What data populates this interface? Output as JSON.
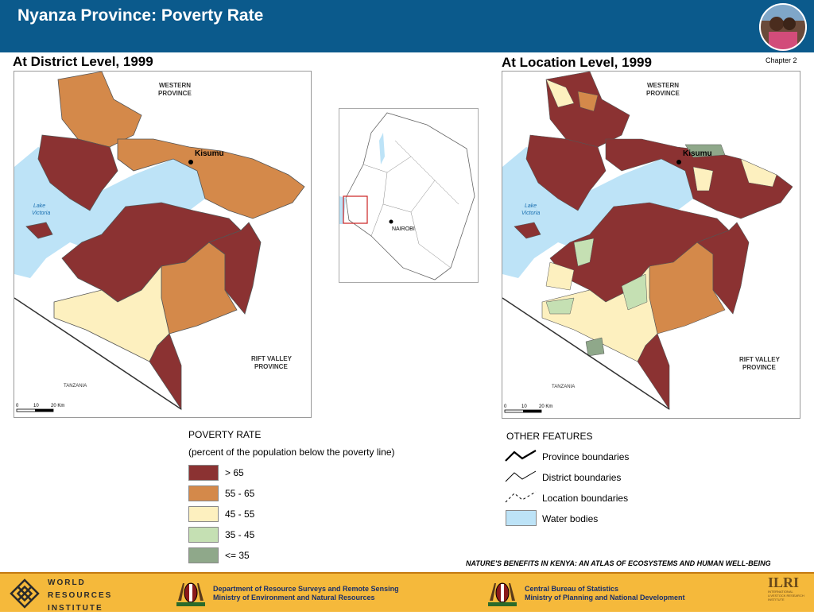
{
  "header": {
    "title": "Nyanza Province: Poverty Rate"
  },
  "chapter": "Chapter 2",
  "left_map": {
    "title": "At District Level, 1999",
    "labels": {
      "western": "WESTERN",
      "western2": "PROVINCE",
      "kisumu": "Kisumu",
      "lake": "Lake",
      "lake2": "Victoria",
      "rift": "RIFT VALLEY",
      "rift2": "PROVINCE",
      "tanzania": "TANZANIA"
    },
    "scale": {
      "s0": "0",
      "s1": "10",
      "s2": "20 Km"
    }
  },
  "right_map": {
    "title": "At Location Level, 1999",
    "labels": {
      "western": "WESTERN",
      "western2": "PROVINCE",
      "kisumu": "Kisumu",
      "lake": "Lake",
      "lake2": "Victoria",
      "rift": "RIFT VALLEY",
      "rift2": "PROVINCE",
      "tanzania": "TANZANIA"
    },
    "scale": {
      "s0": "0",
      "s1": "10",
      "s2": "20 Km"
    }
  },
  "inset": {
    "nairobi": "NAIROBI"
  },
  "poverty_legend": {
    "title": "POVERTY RATE",
    "subtitle": "(percent of the population below the poverty line)",
    "items": [
      {
        "label": "> 65",
        "color": "#8b3232"
      },
      {
        "label": "55 - 65",
        "color": "#d4894a"
      },
      {
        "label": "45 - 55",
        "color": "#fdf0bf"
      },
      {
        "label": "35 - 45",
        "color": "#c5e0b3"
      },
      {
        "label": "<= 35",
        "color": "#8fa88a"
      }
    ]
  },
  "features_legend": {
    "title": "OTHER FEATURES",
    "items": [
      {
        "label": "Province boundaries"
      },
      {
        "label": "District boundaries"
      },
      {
        "label": "Location boundaries"
      },
      {
        "label": "Water bodies"
      }
    ]
  },
  "colors": {
    "water": "#bde3f7",
    "header": "#0b5a8c",
    "footer": "#f5b93b"
  },
  "footer": {
    "note": "NATURE'S BENEFITS IN KENYA: AN ATLAS OF ECOSYSTEMS AND HUMAN WELL-BEING",
    "wri": [
      "WORLD",
      "RESOURCES",
      "INSTITUTE"
    ],
    "dept1": "Department of Resource Surveys and Remote Sensing",
    "dept2": "Ministry of Environment and Natural Resources",
    "cbs1": "Central Bureau of Statistics",
    "cbs2": "Ministry of Planning and National Development",
    "ilri": "ILRI",
    "ilri_sub1": "INTERNATIONAL",
    "ilri_sub2": "LIVESTOCK RESEARCH",
    "ilri_sub3": "INSTITUTE"
  }
}
